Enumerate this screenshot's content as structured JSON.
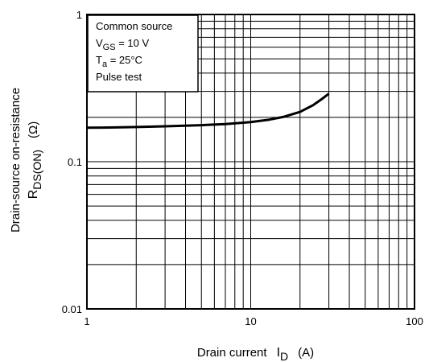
{
  "chart_data": {
    "type": "line",
    "x_scale": "log",
    "y_scale": "log",
    "xlim": [
      1,
      100
    ],
    "ylim": [
      0.01,
      1
    ],
    "grid": true,
    "x_ticks": [
      "1",
      "10",
      "100"
    ],
    "y_ticks": [
      "0.01",
      "0.1",
      "1"
    ],
    "xlabel": {
      "main": "Drain current",
      "symbol": "I",
      "sub": "D",
      "unit": "(A)"
    },
    "ylabel": {
      "line1": "Drain-source on-resistance",
      "symbol": "R",
      "sub": "DS(ON)",
      "unit": "(Ω)"
    },
    "annotation": {
      "line1": "Common source",
      "line2": {
        "symbol": "V",
        "sub": "GS",
        "rest": " = 10 V"
      },
      "line3": {
        "symbol": "T",
        "sub": "a",
        "rest": " = 25°C"
      },
      "line4": "Pulse test"
    },
    "series": [
      {
        "x": [
          1,
          1.5,
          2,
          3,
          5,
          7,
          10,
          13,
          16,
          20,
          24,
          27,
          30
        ],
        "y": [
          0.17,
          0.171,
          0.172,
          0.174,
          0.177,
          0.18,
          0.186,
          0.193,
          0.202,
          0.218,
          0.242,
          0.265,
          0.29
        ]
      }
    ]
  }
}
